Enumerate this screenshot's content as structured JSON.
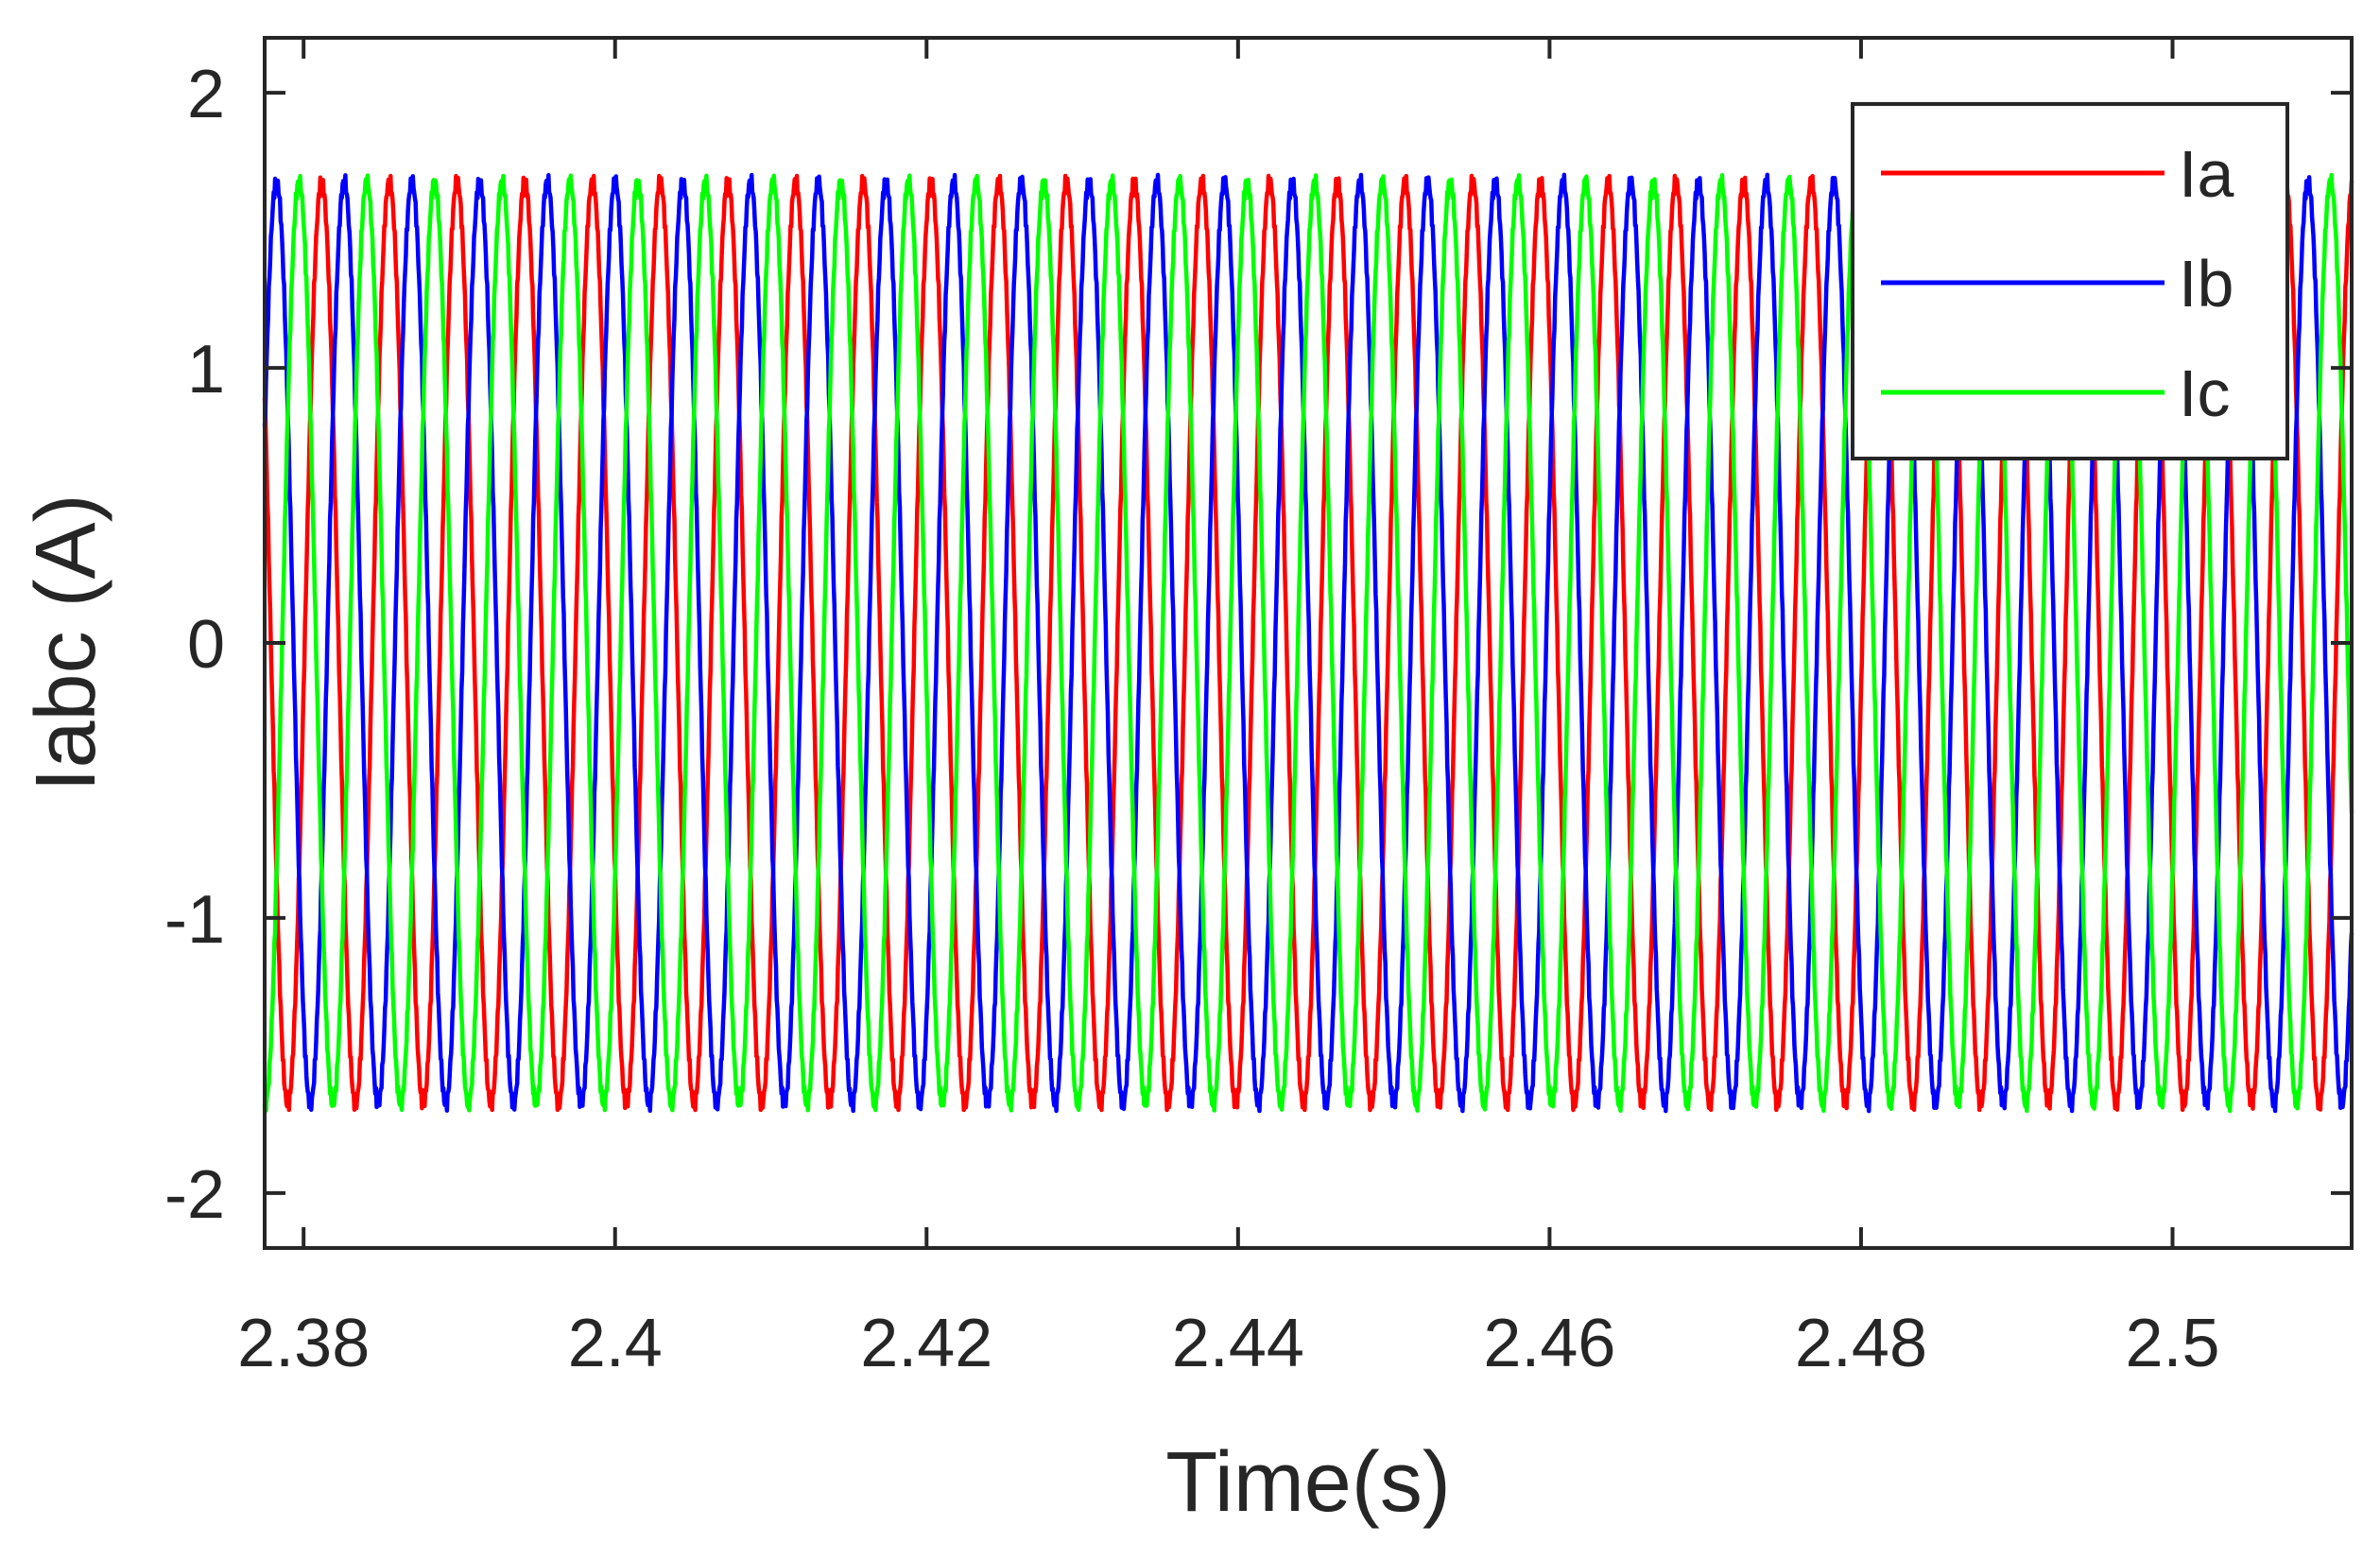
{
  "chart_data": {
    "type": "line",
    "title": "",
    "xlabel": "Time(s)",
    "ylabel": "Iabc (A)",
    "xlim": [
      2.3775,
      2.5115
    ],
    "ylim": [
      -2.2,
      2.2
    ],
    "xticks": [
      {
        "value": 2.38,
        "label": "2.38"
      },
      {
        "value": 2.4,
        "label": "2.4"
      },
      {
        "value": 2.42,
        "label": "2.42"
      },
      {
        "value": 2.44,
        "label": "2.44"
      },
      {
        "value": 2.46,
        "label": "2.46"
      },
      {
        "value": 2.48,
        "label": "2.48"
      },
      {
        "value": 2.5,
        "label": "2.5"
      }
    ],
    "yticks": [
      {
        "value": 2,
        "label": "2"
      },
      {
        "value": 1,
        "label": "1"
      },
      {
        "value": 0,
        "label": "0"
      },
      {
        "value": -1,
        "label": "-1"
      },
      {
        "value": -2,
        "label": "-2"
      }
    ],
    "grid": false,
    "legend_position": "top-right",
    "signal": {
      "amplitude": 1.68,
      "frequency_hz": 230,
      "phase_ia_deg": -150
    },
    "series": [
      {
        "name": "Ia",
        "color": "#ff0000",
        "phase_offset_deg": 0
      },
      {
        "name": "Ib",
        "color": "#0000ff",
        "phase_offset_deg": -120
      },
      {
        "name": "Ic",
        "color": "#00ff00",
        "phase_offset_deg": 120
      }
    ]
  }
}
